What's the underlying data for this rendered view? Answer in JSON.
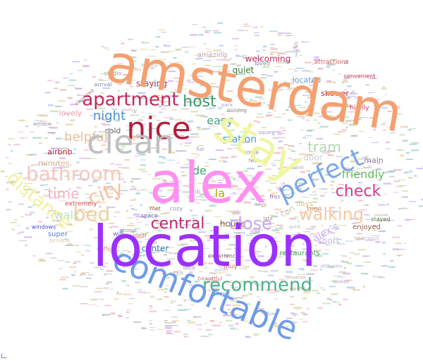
{
  "words": [
    {
      "text": "amsterdam",
      "color": "#f4a070",
      "size": 74,
      "rot": 10
    },
    {
      "text": "location",
      "color": "#9b30ff",
      "size": 80,
      "rot": 0
    },
    {
      "text": "alex",
      "color": "#ff8ff0",
      "size": 80,
      "rot": 0
    },
    {
      "text": "stay",
      "color": "#f0f5a0",
      "size": 62,
      "rot": 30
    },
    {
      "text": "comfortable",
      "color": "#6f9be8",
      "size": 46,
      "rot": 22
    },
    {
      "text": "clean",
      "color": "#c0c0c0",
      "size": 46,
      "rot": 0
    },
    {
      "text": "nice",
      "color": "#b51e3e",
      "size": 44,
      "rot": 0
    },
    {
      "text": "perfect",
      "color": "#7ea7e8",
      "size": 36,
      "rot": -25
    },
    {
      "text": "bathroom",
      "color": "#f5c6c0",
      "size": 28,
      "rot": 0
    },
    {
      "text": "apartment",
      "color": "#c02859",
      "size": 26,
      "rot": 0
    },
    {
      "text": "recommend",
      "color": "#4fb088",
      "size": 26,
      "rot": 0
    },
    {
      "text": "bed",
      "color": "#f0cfa0",
      "size": 28,
      "rot": 0
    },
    {
      "text": "city",
      "color": "#f5c0a0",
      "size": 28,
      "rot": -20
    },
    {
      "text": "distance",
      "color": "#f0f0a0",
      "size": 26,
      "rot": 40
    },
    {
      "text": "close",
      "color": "#c6a8f0",
      "size": 24,
      "rot": 0
    },
    {
      "text": "walking",
      "color": "#f5c8a0",
      "size": 24,
      "rot": 0
    },
    {
      "text": "central",
      "color": "#c0286c",
      "size": 22,
      "rot": 0
    },
    {
      "text": "check",
      "color": "#d63a8a",
      "size": 22,
      "rot": 0
    },
    {
      "text": "host",
      "color": "#3a9a66",
      "size": 22,
      "rot": 0
    },
    {
      "text": "tram",
      "color": "#b0d8b0",
      "size": 20,
      "rot": 0
    },
    {
      "text": "time",
      "color": "#f5b0c0",
      "size": 20,
      "rot": 0
    },
    {
      "text": "night",
      "color": "#4a8ccc",
      "size": 18,
      "rot": 0
    },
    {
      "text": "helpful",
      "color": "#e8c098",
      "size": 18,
      "rot": 0
    },
    {
      "text": "easy",
      "color": "#4aa88a",
      "size": 16,
      "rot": 0
    },
    {
      "text": "friendly",
      "color": "#6ab86a",
      "size": 16,
      "rot": 0
    },
    {
      "text": "station",
      "color": "#4aa0d0",
      "size": 14,
      "rot": 0
    },
    {
      "text": "walk",
      "color": "#b8e0b8",
      "size": 16,
      "rot": 0
    },
    {
      "text": "alex's",
      "color": "#c8b0f0",
      "size": 14,
      "rot": -30
    },
    {
      "text": "center",
      "color": "#2a78b8",
      "size": 12,
      "rot": 0
    },
    {
      "text": "house",
      "color": "#8a6a2a",
      "size": 12,
      "rot": 0
    },
    {
      "text": "de",
      "color": "#3aa86a",
      "size": 16,
      "rot": 0
    },
    {
      "text": "la",
      "color": "#c0a000",
      "size": 16,
      "rot": 0
    },
    {
      "text": "con",
      "color": "#c8d0a0",
      "size": 12,
      "rot": -30
    },
    {
      "text": "bit",
      "color": "#f0b8d0",
      "size": 12,
      "rot": -40
    },
    {
      "text": "cold",
      "color": "#6a6a6a",
      "size": 11,
      "rot": 0
    },
    {
      "text": "airbnb",
      "color": "#b02040",
      "size": 11,
      "rot": 0
    },
    {
      "text": "lovely",
      "color": "#f098a8",
      "size": 11,
      "rot": 0
    },
    {
      "text": "minutes,",
      "color": "#d8b098",
      "size": 11,
      "rot": 0
    },
    {
      "text": "extremely",
      "color": "#d04848",
      "size": 9,
      "rot": 0
    },
    {
      "text": "super",
      "color": "#5a7ad8",
      "size": 10,
      "rot": 0
    },
    {
      "text": "windows",
      "color": "#4a4ad8",
      "size": 8,
      "rot": 0
    },
    {
      "text": "private",
      "color": "#d8c8a8",
      "size": 8,
      "rot": 0
    },
    {
      "text": "wifi",
      "color": "#6a6ad8",
      "size": 9,
      "rot": 0
    },
    {
      "text": "ideal",
      "color": "#c08090",
      "size": 8,
      "rot": 0
    },
    {
      "text": "met",
      "color": "#806040",
      "size": 8,
      "rot": 0
    },
    {
      "text": "space",
      "color": "#5050a0",
      "size": 8,
      "rot": 0
    },
    {
      "text": "coffee",
      "color": "#d89888",
      "size": 8,
      "rot": 0
    },
    {
      "text": "cozy",
      "color": "#9090c8",
      "size": 8,
      "rot": 0
    },
    {
      "text": "restaurants",
      "color": "#4a9a4a",
      "size": 10,
      "rot": 0
    },
    {
      "text": "experience",
      "color": "#8a5a5a",
      "size": 8,
      "rot": 0
    },
    {
      "text": "muy",
      "color": "#c07050",
      "size": 9,
      "rot": 0
    },
    {
      "text": "beautiful",
      "color": "#d890a0",
      "size": 8,
      "rot": 0
    },
    {
      "text": "staying",
      "color": "#b04060",
      "size": 12,
      "rot": 0
    },
    {
      "text": "quiet",
      "color": "#3a7a3a",
      "size": 12,
      "rot": 0
    },
    {
      "text": "welcoming",
      "color": "#c03060",
      "size": 12,
      "rot": 0
    },
    {
      "text": "amazing",
      "color": "#c0a0a0",
      "size": 10,
      "rot": 0
    },
    {
      "text": "located",
      "color": "#6aa0d8",
      "size": 11,
      "rot": 0
    },
    {
      "text": "shower",
      "color": "#b82a50",
      "size": 11,
      "rot": 0
    },
    {
      "text": "highly",
      "color": "#c03860",
      "size": 9,
      "rot": 0
    },
    {
      "text": "attractions",
      "color": "#d05858",
      "size": 9,
      "rot": 0
    },
    {
      "text": "convenient",
      "color": "#c02848",
      "size": 8,
      "rot": 0
    },
    {
      "text": "main",
      "color": "#8a7a9a",
      "size": 11,
      "rot": 0
    },
    {
      "text": "door",
      "color": "#d0d0d0",
      "size": 12,
      "rot": 0
    },
    {
      "text": "days",
      "color": "#d8c080",
      "size": 10,
      "rot": 0
    },
    {
      "text": "bien",
      "color": "#d0a070",
      "size": 10,
      "rot": 0
    },
    {
      "text": "enjoyed",
      "color": "#a06040",
      "size": 10,
      "rot": 0
    },
    {
      "text": "short",
      "color": "#c8b8e8",
      "size": 12,
      "rot": 0
    },
    {
      "text": "stayed",
      "color": "#5a7a5a",
      "size": 8,
      "rot": 0
    },
    {
      "text": "spacious",
      "color": "#c8b0c8",
      "size": 8,
      "rot": 0
    },
    {
      "text": "loved",
      "color": "#8a8a8a",
      "size": 8,
      "rot": 0
    },
    {
      "text": "studio",
      "color": "#9a9a9a",
      "size": 8,
      "rot": 0
    },
    {
      "text": "arrival",
      "color": "#8a8aaa",
      "size": 8,
      "rot": 0
    },
    {
      "text": "expected",
      "color": "#b08080",
      "size": 7,
      "rot": -40
    },
    {
      "text": "window",
      "color": "#9090b0",
      "size": 7,
      "rot": 0
    },
    {
      "text": "building",
      "color": "#8a8a8a",
      "size": 7,
      "rot": 0
    },
    {
      "text": "noise",
      "color": "#c0c0c0",
      "size": 7,
      "rot": 0
    },
    {
      "text": "home",
      "color": "#9a8aaa",
      "size": 8,
      "rot": 0
    },
    {
      "text": "feel",
      "color": "#a0a0a0",
      "size": 8,
      "rot": 0
    },
    {
      "text": "square",
      "color": "#a0a0c0",
      "size": 7,
      "rot": 0
    },
    {
      "text": "hotel",
      "color": "#b0b0b0",
      "size": 7,
      "rot": 0
    },
    {
      "text": "keys",
      "color": "#b0a0a0",
      "size": 7,
      "rot": 0
    },
    {
      "text": "late",
      "color": "#b09090",
      "size": 7,
      "rot": 0
    },
    {
      "text": "photos",
      "color": "#9090a0",
      "size": 7,
      "rot": 0
    },
    {
      "text": "tres",
      "color": "#a080c0",
      "size": 8,
      "rot": 0
    },
    {
      "text": "flat",
      "color": "#9a9ac0",
      "size": 7,
      "rot": 0
    },
    {
      "text": "para",
      "color": "#b0a0c0",
      "size": 7,
      "rot": 0
    },
    {
      "text": "di",
      "color": "#c0a0a0",
      "size": 8,
      "rot": 0
    },
    {
      "text": "road",
      "color": "#a0a0a0",
      "size": 6,
      "rot": 0
    },
    {
      "text": "quick",
      "color": "#b0b0c0",
      "size": 6,
      "rot": 0
    },
    {
      "text": "water",
      "color": "#c0c0d0",
      "size": 7,
      "rot": 0
    },
    {
      "text": "centre",
      "color": "#d0c0c0",
      "size": 7,
      "rot": -30
    },
    {
      "text": "accessible",
      "color": "#b0b0d0",
      "size": 6,
      "rot": 0
    },
    {
      "text": "nights",
      "color": "#a0b0a0",
      "size": 6,
      "rot": 0
    },
    {
      "text": "kitchen",
      "color": "#c0a0b0",
      "size": 6,
      "rot": 90
    },
    {
      "text": "bottle",
      "color": "#a0a0b0",
      "size": 6,
      "rot": 0
    },
    {
      "text": "couple",
      "color": "#b0b0b0",
      "size": 6,
      "rot": 0
    },
    {
      "text": "breakfast",
      "color": "#c0b0a0",
      "size": 6,
      "rot": 0
    },
    {
      "text": "parking",
      "color": "#a0c0a0",
      "size": 6,
      "rot": 0
    },
    {
      "text": "booked",
      "color": "#b0a0c0",
      "size": 6,
      "rot": 0
    }
  ]
}
